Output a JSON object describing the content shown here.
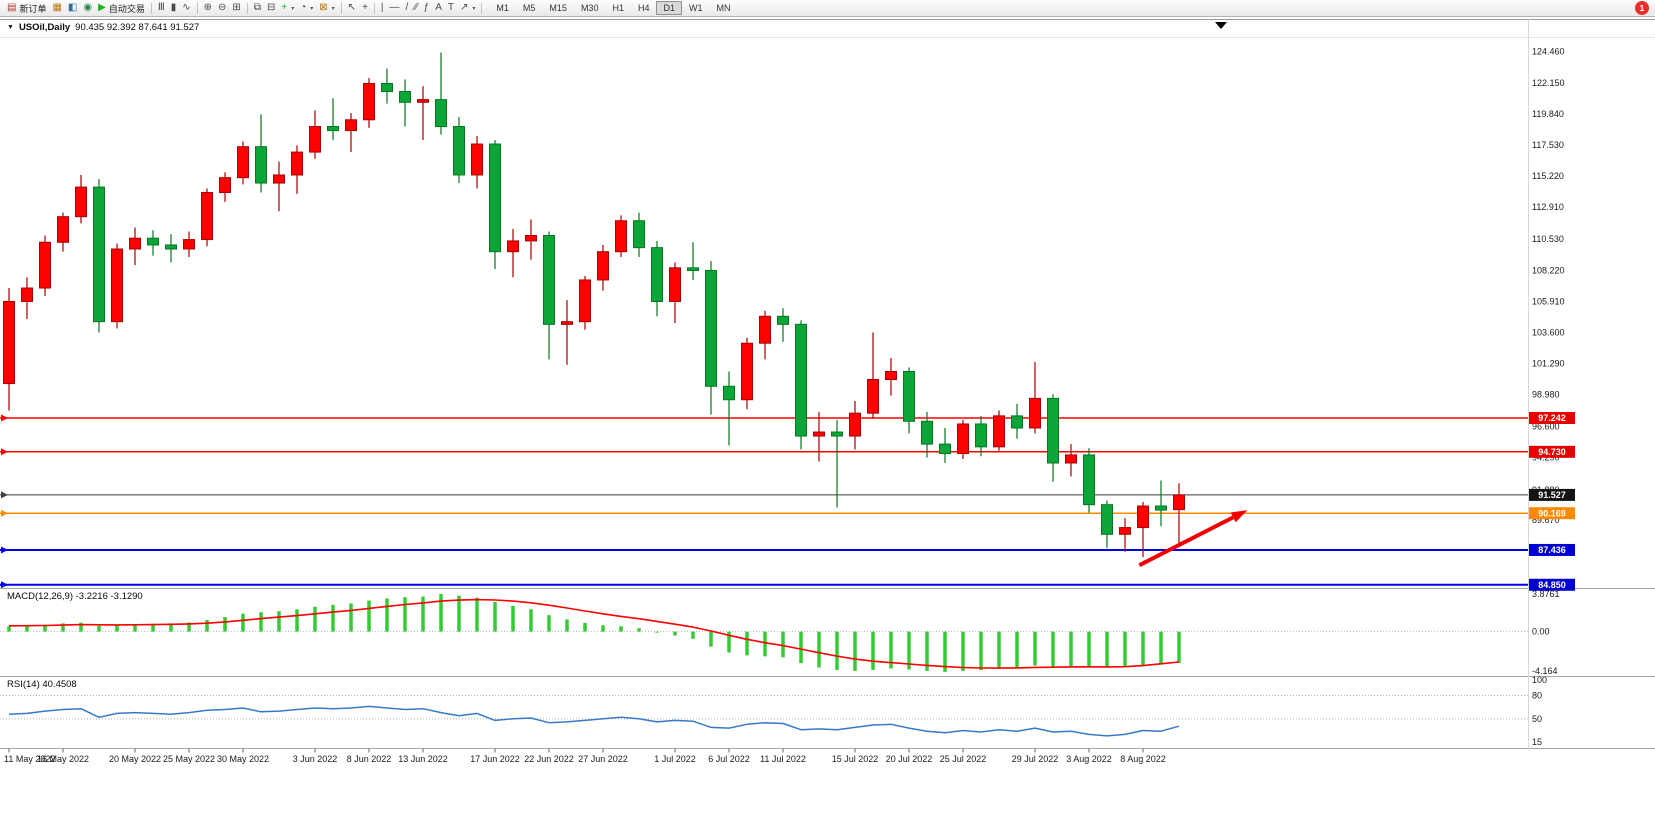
{
  "window": {
    "notification_badge": "1"
  },
  "toolbar": {
    "buttons": [
      {
        "name": "new-order-button",
        "glyph": "▤",
        "color": "#b03a2e",
        "label": "新订单"
      },
      {
        "name": "chart-window-button",
        "glyph": "▦",
        "color": "#b9770e"
      },
      {
        "name": "market-watch-button",
        "glyph": "◧",
        "color": "#2471a3"
      },
      {
        "name": "navigator-button",
        "glyph": "◉",
        "color": "#1e8449"
      },
      {
        "name": "auto-trading-button",
        "glyph": "▶",
        "color": "#1db31d",
        "label": "自动交易"
      },
      {
        "sep": true
      },
      {
        "name": "bar-chart-type-button",
        "glyph": "Ⅲ",
        "color": "#4a4a4a"
      },
      {
        "name": "candlestick-type-button",
        "glyph": "▮",
        "color": "#4a4a4a"
      },
      {
        "name": "line-chart-type-button",
        "glyph": "∿",
        "color": "#4a4a4a"
      },
      {
        "sep": true
      },
      {
        "name": "zoom-in-button",
        "glyph": "⊕",
        "color": "#4a4a4a"
      },
      {
        "name": "zoom-out-button",
        "glyph": "⊖",
        "color": "#4a4a4a"
      },
      {
        "name": "tile-windows-button",
        "glyph": "⊞",
        "color": "#4a4a4a"
      },
      {
        "sep": true
      },
      {
        "name": "cascade-windows-button",
        "glyph": "⧉",
        "color": "#4a4a4a"
      },
      {
        "name": "tile-vertical-button",
        "glyph": "⊟",
        "color": "#4a4a4a"
      },
      {
        "name": "indicators-button",
        "glyph": "+",
        "color": "#1db31d",
        "caret": true
      },
      {
        "name": "periods-button",
        "glyph": "◔",
        "color": "#4a4a4a",
        "caret": true
      },
      {
        "name": "templates-button",
        "glyph": "⊠",
        "color": "#b9770e",
        "caret": true
      },
      {
        "sep": true
      },
      {
        "name": "cursor-button",
        "glyph": "↖",
        "color": "#4a4a4a"
      },
      {
        "name": "crosshair-button",
        "glyph": "+",
        "color": "#4a4a4a"
      },
      {
        "sep": true
      },
      {
        "name": "vertical-line-button",
        "glyph": "|",
        "color": "#4a4a4a"
      },
      {
        "name": "horizontal-line-button",
        "glyph": "—",
        "color": "#4a4a4a"
      },
      {
        "name": "trendline-button",
        "glyph": "/",
        "color": "#4a4a4a"
      },
      {
        "name": "channel-button",
        "glyph": "∕∕",
        "color": "#4a4a4a"
      },
      {
        "name": "fibonacci-button",
        "glyph": "ƒ",
        "color": "#4a4a4a"
      },
      {
        "name": "text-button",
        "glyph": "A",
        "color": "#4a4a4a"
      },
      {
        "name": "label-button",
        "glyph": "T",
        "color": "#4a4a4a"
      },
      {
        "name": "arrows-button",
        "glyph": "↗",
        "color": "#4a4a4a",
        "caret": true
      },
      {
        "sep": true
      }
    ],
    "timeframes": {
      "items": [
        "M1",
        "M5",
        "M15",
        "M30",
        "H1",
        "H4",
        "D1",
        "W1",
        "MN"
      ],
      "active": "D1"
    }
  },
  "chart": {
    "dropdown_glyph": "▼",
    "symbol_period": "USOil,Daily",
    "ohlc_text": "90.435 92.392 87.641 91.527"
  },
  "indicators": {
    "macd": {
      "label": "MACD(12,26,9) -3.2216 -3.1290",
      "axis": [
        {
          "v": 3.8761,
          "t": "3.8761"
        },
        {
          "v": 0,
          "t": "0.00"
        },
        {
          "v": -4.164,
          "t": "-4.164"
        }
      ]
    },
    "rsi": {
      "label": "RSI(14) 40.4508",
      "axis": [
        {
          "v": 100,
          "t": "100"
        },
        {
          "v": 80,
          "t": "80"
        },
        {
          "v": 50,
          "t": "50"
        },
        {
          "v": 15,
          "t": "15"
        }
      ],
      "levels": [
        80,
        50
      ]
    }
  },
  "chart_data": {
    "type": "candlestick",
    "symbol": "USOil",
    "period": "Daily",
    "last_ohlc": {
      "open": 90.435,
      "high": 92.392,
      "low": 87.641,
      "close": 91.527
    },
    "y_axis_labels": [
      "124.460",
      "122.150",
      "119.840",
      "117.530",
      "115.220",
      "112.910",
      "110.530",
      "108.220",
      "105.910",
      "103.600",
      "101.290",
      "98.980",
      "96.600",
      "94.290",
      "91.880",
      "89.670"
    ],
    "hlines": [
      {
        "price": 97.242,
        "label": "97.242",
        "color": "#ff0000",
        "badge": "#e60000",
        "width": 1.5,
        "name": "resistance-line-97-242"
      },
      {
        "price": 94.73,
        "label": "94.730",
        "color": "#ff0000",
        "badge": "#e60000",
        "width": 1.5,
        "name": "resistance-line-94-730"
      },
      {
        "price": 91.527,
        "label": "91.527",
        "color": "#3f3f3f",
        "badge": "#141414",
        "width": 1,
        "name": "current-price-line"
      },
      {
        "price": 90.169,
        "label": "90.169",
        "color": "#ff8a00",
        "badge": "#ff8a00",
        "width": 1.5,
        "name": "support-line-90-169"
      },
      {
        "price": 87.436,
        "label": "87.436",
        "color": "#0000ee",
        "badge": "#0000d0",
        "width": 2,
        "name": "support-line-87-436"
      },
      {
        "price": 84.85,
        "label": "84.850",
        "color": "#0000ee",
        "badge": "#0000d0",
        "width": 2,
        "name": "support-line-84-850"
      }
    ],
    "x_ticks": {
      "indices": [
        0,
        3,
        7,
        10,
        13,
        17,
        20,
        23,
        27,
        30,
        33,
        37,
        40,
        43,
        47,
        50,
        53,
        57,
        60,
        63
      ],
      "labels": [
        "11 May 2022",
        "16 May 2022",
        "20 May 2022",
        "25 May 2022",
        "30 May 2022",
        "3 Jun 2022",
        "8 Jun 2022",
        "13 Jun 2022",
        "17 Jun 2022",
        "22 Jun 2022",
        "27 Jun 2022",
        "1 Jul 2022",
        "6 Jul 2022",
        "11 Jul 2022",
        "15 Jul 2022",
        "20 Jul 2022",
        "25 Jul 2022",
        "29 Jul 2022",
        "3 Aug 2022",
        "8 Aug 2022"
      ]
    },
    "candles": [
      [
        "2022-05-11",
        99.8,
        106.9,
        97.8,
        105.9
      ],
      [
        "2022-05-12",
        105.9,
        107.7,
        104.6,
        106.9
      ],
      [
        "2022-05-13",
        106.9,
        110.8,
        106.3,
        110.3
      ],
      [
        "2022-05-16",
        110.3,
        112.5,
        109.6,
        112.2
      ],
      [
        "2022-05-17",
        112.2,
        115.3,
        111.7,
        114.4
      ],
      [
        "2022-05-18",
        114.4,
        115.0,
        103.6,
        104.4
      ],
      [
        "2022-05-19",
        104.4,
        110.2,
        103.9,
        109.8
      ],
      [
        "2022-05-20",
        109.8,
        111.4,
        108.6,
        110.6
      ],
      [
        "2022-05-23",
        110.6,
        111.2,
        109.3,
        110.1
      ],
      [
        "2022-05-24",
        110.1,
        110.9,
        108.8,
        109.8
      ],
      [
        "2022-05-25",
        109.8,
        111.1,
        109.2,
        110.5
      ],
      [
        "2022-05-26",
        110.5,
        114.3,
        110.0,
        114.0
      ],
      [
        "2022-05-27",
        114.0,
        115.5,
        113.3,
        115.1
      ],
      [
        "2022-05-30",
        115.1,
        117.8,
        114.6,
        117.4
      ],
      [
        "2022-05-31",
        117.4,
        119.8,
        114.0,
        114.7
      ],
      [
        "2022-06-01",
        114.7,
        116.3,
        112.6,
        115.3
      ],
      [
        "2022-06-02",
        115.3,
        117.5,
        113.9,
        117.0
      ],
      [
        "2022-06-03",
        117.0,
        120.1,
        116.5,
        118.9
      ],
      [
        "2022-06-06",
        118.9,
        121.0,
        117.9,
        118.6
      ],
      [
        "2022-06-07",
        118.6,
        119.9,
        117.0,
        119.4
      ],
      [
        "2022-06-08",
        119.4,
        122.5,
        118.8,
        122.1
      ],
      [
        "2022-06-09",
        122.1,
        123.2,
        120.6,
        121.5
      ],
      [
        "2022-06-10",
        121.5,
        122.4,
        118.9,
        120.7
      ],
      [
        "2022-06-13",
        120.7,
        121.9,
        117.9,
        120.9
      ],
      [
        "2022-06-14",
        120.9,
        124.4,
        118.3,
        118.9
      ],
      [
        "2022-06-15",
        118.9,
        119.6,
        114.7,
        115.3
      ],
      [
        "2022-06-16",
        115.3,
        118.2,
        114.3,
        117.6
      ],
      [
        "2022-06-17",
        117.6,
        117.9,
        108.3,
        109.6
      ],
      [
        "2022-06-20",
        109.6,
        111.3,
        107.7,
        110.4
      ],
      [
        "2022-06-21",
        110.4,
        112.0,
        109.0,
        110.8
      ],
      [
        "2022-06-22",
        110.8,
        111.1,
        101.6,
        104.2
      ],
      [
        "2022-06-23",
        104.2,
        106.0,
        101.2,
        104.4
      ],
      [
        "2022-06-24",
        104.4,
        107.8,
        103.8,
        107.5
      ],
      [
        "2022-06-27",
        107.5,
        110.1,
        106.7,
        109.6
      ],
      [
        "2022-06-28",
        109.6,
        112.3,
        109.2,
        111.9
      ],
      [
        "2022-06-29",
        111.9,
        112.5,
        109.2,
        109.9
      ],
      [
        "2022-06-30",
        109.9,
        110.4,
        104.8,
        105.9
      ],
      [
        "2022-07-01",
        105.9,
        108.8,
        104.3,
        108.4
      ],
      [
        "2022-07-04",
        108.4,
        110.3,
        107.5,
        108.2
      ],
      [
        "2022-07-05",
        108.2,
        108.9,
        97.5,
        99.6
      ],
      [
        "2022-07-06",
        99.6,
        100.7,
        95.2,
        98.6
      ],
      [
        "2022-07-07",
        98.6,
        103.2,
        97.9,
        102.8
      ],
      [
        "2022-07-08",
        102.8,
        105.2,
        101.6,
        104.8
      ],
      [
        "2022-07-11",
        104.8,
        105.4,
        102.9,
        104.2
      ],
      [
        "2022-07-12",
        104.2,
        104.5,
        94.9,
        95.9
      ],
      [
        "2022-07-13",
        95.9,
        97.7,
        94.0,
        96.2
      ],
      [
        "2022-07-14",
        96.2,
        97.1,
        90.6,
        95.9
      ],
      [
        "2022-07-15",
        95.9,
        98.5,
        94.9,
        97.6
      ],
      [
        "2022-07-18",
        97.6,
        103.6,
        97.2,
        100.1
      ],
      [
        "2022-07-19",
        100.1,
        101.7,
        98.9,
        100.7
      ],
      [
        "2022-07-20",
        100.7,
        101.0,
        96.1,
        97.0
      ],
      [
        "2022-07-21",
        97.0,
        97.7,
        94.3,
        95.3
      ],
      [
        "2022-07-22",
        95.3,
        96.5,
        93.9,
        94.6
      ],
      [
        "2022-07-25",
        94.6,
        97.1,
        94.2,
        96.8
      ],
      [
        "2022-07-26",
        96.8,
        97.4,
        94.4,
        95.1
      ],
      [
        "2022-07-27",
        95.1,
        97.8,
        94.8,
        97.4
      ],
      [
        "2022-07-28",
        97.4,
        98.3,
        95.7,
        96.5
      ],
      [
        "2022-07-29",
        96.5,
        101.4,
        96.1,
        98.7
      ],
      [
        "2022-08-01",
        98.7,
        99.0,
        92.5,
        93.9
      ],
      [
        "2022-08-02",
        93.9,
        95.3,
        92.9,
        94.5
      ],
      [
        "2022-08-03",
        94.5,
        95.0,
        90.2,
        90.8
      ],
      [
        "2022-08-04",
        90.8,
        91.1,
        87.6,
        88.6
      ],
      [
        "2022-08-05",
        88.6,
        89.8,
        87.3,
        89.1
      ],
      [
        "2022-08-08",
        89.1,
        91.0,
        86.9,
        90.7
      ],
      [
        "2022-08-09",
        90.7,
        92.6,
        89.2,
        90.4
      ],
      [
        "2022-08-10",
        90.435,
        92.392,
        87.641,
        91.527
      ]
    ],
    "macd": {
      "histogram": [
        0.55,
        0.62,
        0.72,
        0.85,
        0.92,
        0.6,
        0.65,
        0.75,
        0.8,
        0.85,
        0.95,
        1.2,
        1.5,
        1.85,
        2.0,
        2.1,
        2.3,
        2.55,
        2.75,
        2.9,
        3.2,
        3.42,
        3.55,
        3.62,
        3.88,
        3.7,
        3.5,
        3.05,
        2.65,
        2.3,
        1.7,
        1.25,
        0.9,
        0.65,
        0.55,
        0.35,
        -0.1,
        -0.4,
        -0.75,
        -1.55,
        -2.15,
        -2.45,
        -2.55,
        -2.65,
        -3.25,
        -3.7,
        -3.95,
        -4.05,
        -3.95,
        -3.8,
        -3.9,
        -4.05,
        -4.16,
        -4.05,
        -3.95,
        -3.8,
        -3.7,
        -3.5,
        -3.6,
        -3.55,
        -3.62,
        -3.68,
        -3.58,
        -3.45,
        -3.35,
        -3.22
      ],
      "signal": [
        0.6,
        0.61,
        0.63,
        0.67,
        0.72,
        0.7,
        0.69,
        0.7,
        0.72,
        0.75,
        0.79,
        0.87,
        1.0,
        1.17,
        1.34,
        1.49,
        1.65,
        1.83,
        2.01,
        2.19,
        2.39,
        2.6,
        2.79,
        2.96,
        3.14,
        3.25,
        3.3,
        3.26,
        3.14,
        2.97,
        2.72,
        2.43,
        2.12,
        1.83,
        1.57,
        1.33,
        1.05,
        0.76,
        0.46,
        0.06,
        -0.38,
        -0.79,
        -1.14,
        -1.44,
        -1.8,
        -2.18,
        -2.53,
        -2.83,
        -3.05,
        -3.2,
        -3.34,
        -3.48,
        -3.61,
        -3.7,
        -3.75,
        -3.76,
        -3.74,
        -3.69,
        -3.67,
        -3.64,
        -3.63,
        -3.64,
        -3.62,
        -3.5,
        -3.32,
        -3.13
      ]
    },
    "rsi": {
      "values": [
        56,
        57,
        60,
        62,
        63,
        52,
        57,
        58,
        57,
        56,
        58,
        61,
        62,
        64,
        59,
        60,
        62,
        64,
        63,
        64,
        66,
        64,
        62,
        63,
        58,
        54,
        57,
        48,
        50,
        51,
        45,
        46,
        48,
        50,
        52,
        50,
        46,
        48,
        47,
        39,
        38,
        43,
        45,
        44,
        36,
        37,
        36,
        39,
        42,
        43,
        38,
        34,
        32,
        35,
        33,
        36,
        34,
        38,
        33,
        34,
        30,
        28,
        30,
        35,
        34,
        40.45
      ]
    },
    "arrow": {
      "from_index": 62.8,
      "from_price": 86.3,
      "to_index": 68.8,
      "to_price": 90.4,
      "color": "#f20000"
    }
  },
  "colors": {
    "bull": "#ff0000",
    "bull_border": "#a80000",
    "bear": "#0ca538",
    "bear_border": "#077522",
    "macd_hist": "#33cc33",
    "macd_signal": "#ff0000",
    "rsi_line": "#357ac9",
    "axis_text": "#1a1a1a",
    "badge_text": "#ffffff",
    "separator": "#a8a8a8"
  }
}
